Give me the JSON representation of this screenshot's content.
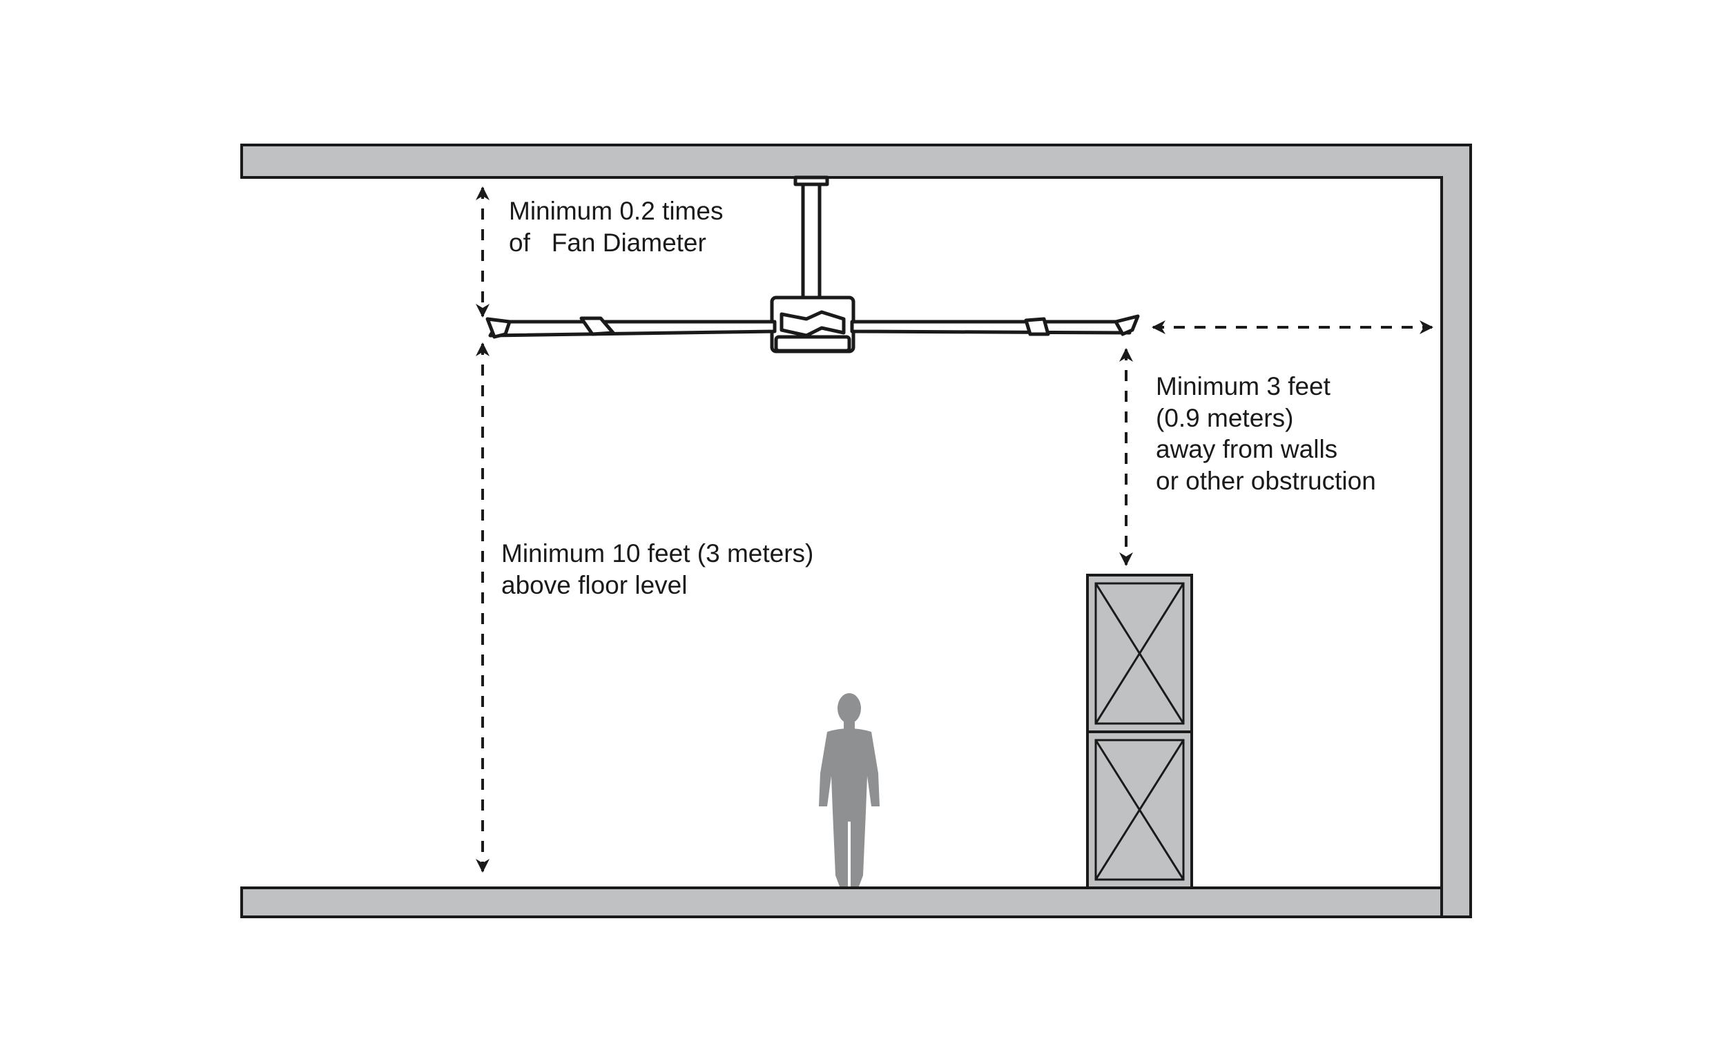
{
  "diagram": {
    "labels": {
      "ceiling_clearance_line1": "Minimum 0.2 times",
      "ceiling_clearance_line2": "of   Fan Diameter",
      "floor_clearance_line1": "Minimum 10 feet (3 meters)",
      "floor_clearance_line2": "above floor level",
      "wall_clearance_line1": "Minimum 3 feet",
      "wall_clearance_line2": "(0.9 meters)",
      "wall_clearance_line3": "away from walls",
      "wall_clearance_line4": "or other obstruction"
    },
    "colors": {
      "structure_fill": "#c0c1c3",
      "person_fill": "#8f9092",
      "line": "#1a1a1a"
    },
    "icons": {
      "fan": "ceiling-fan-icon",
      "person": "person-silhouette-icon",
      "crates": "stacked-crate-icon"
    }
  }
}
